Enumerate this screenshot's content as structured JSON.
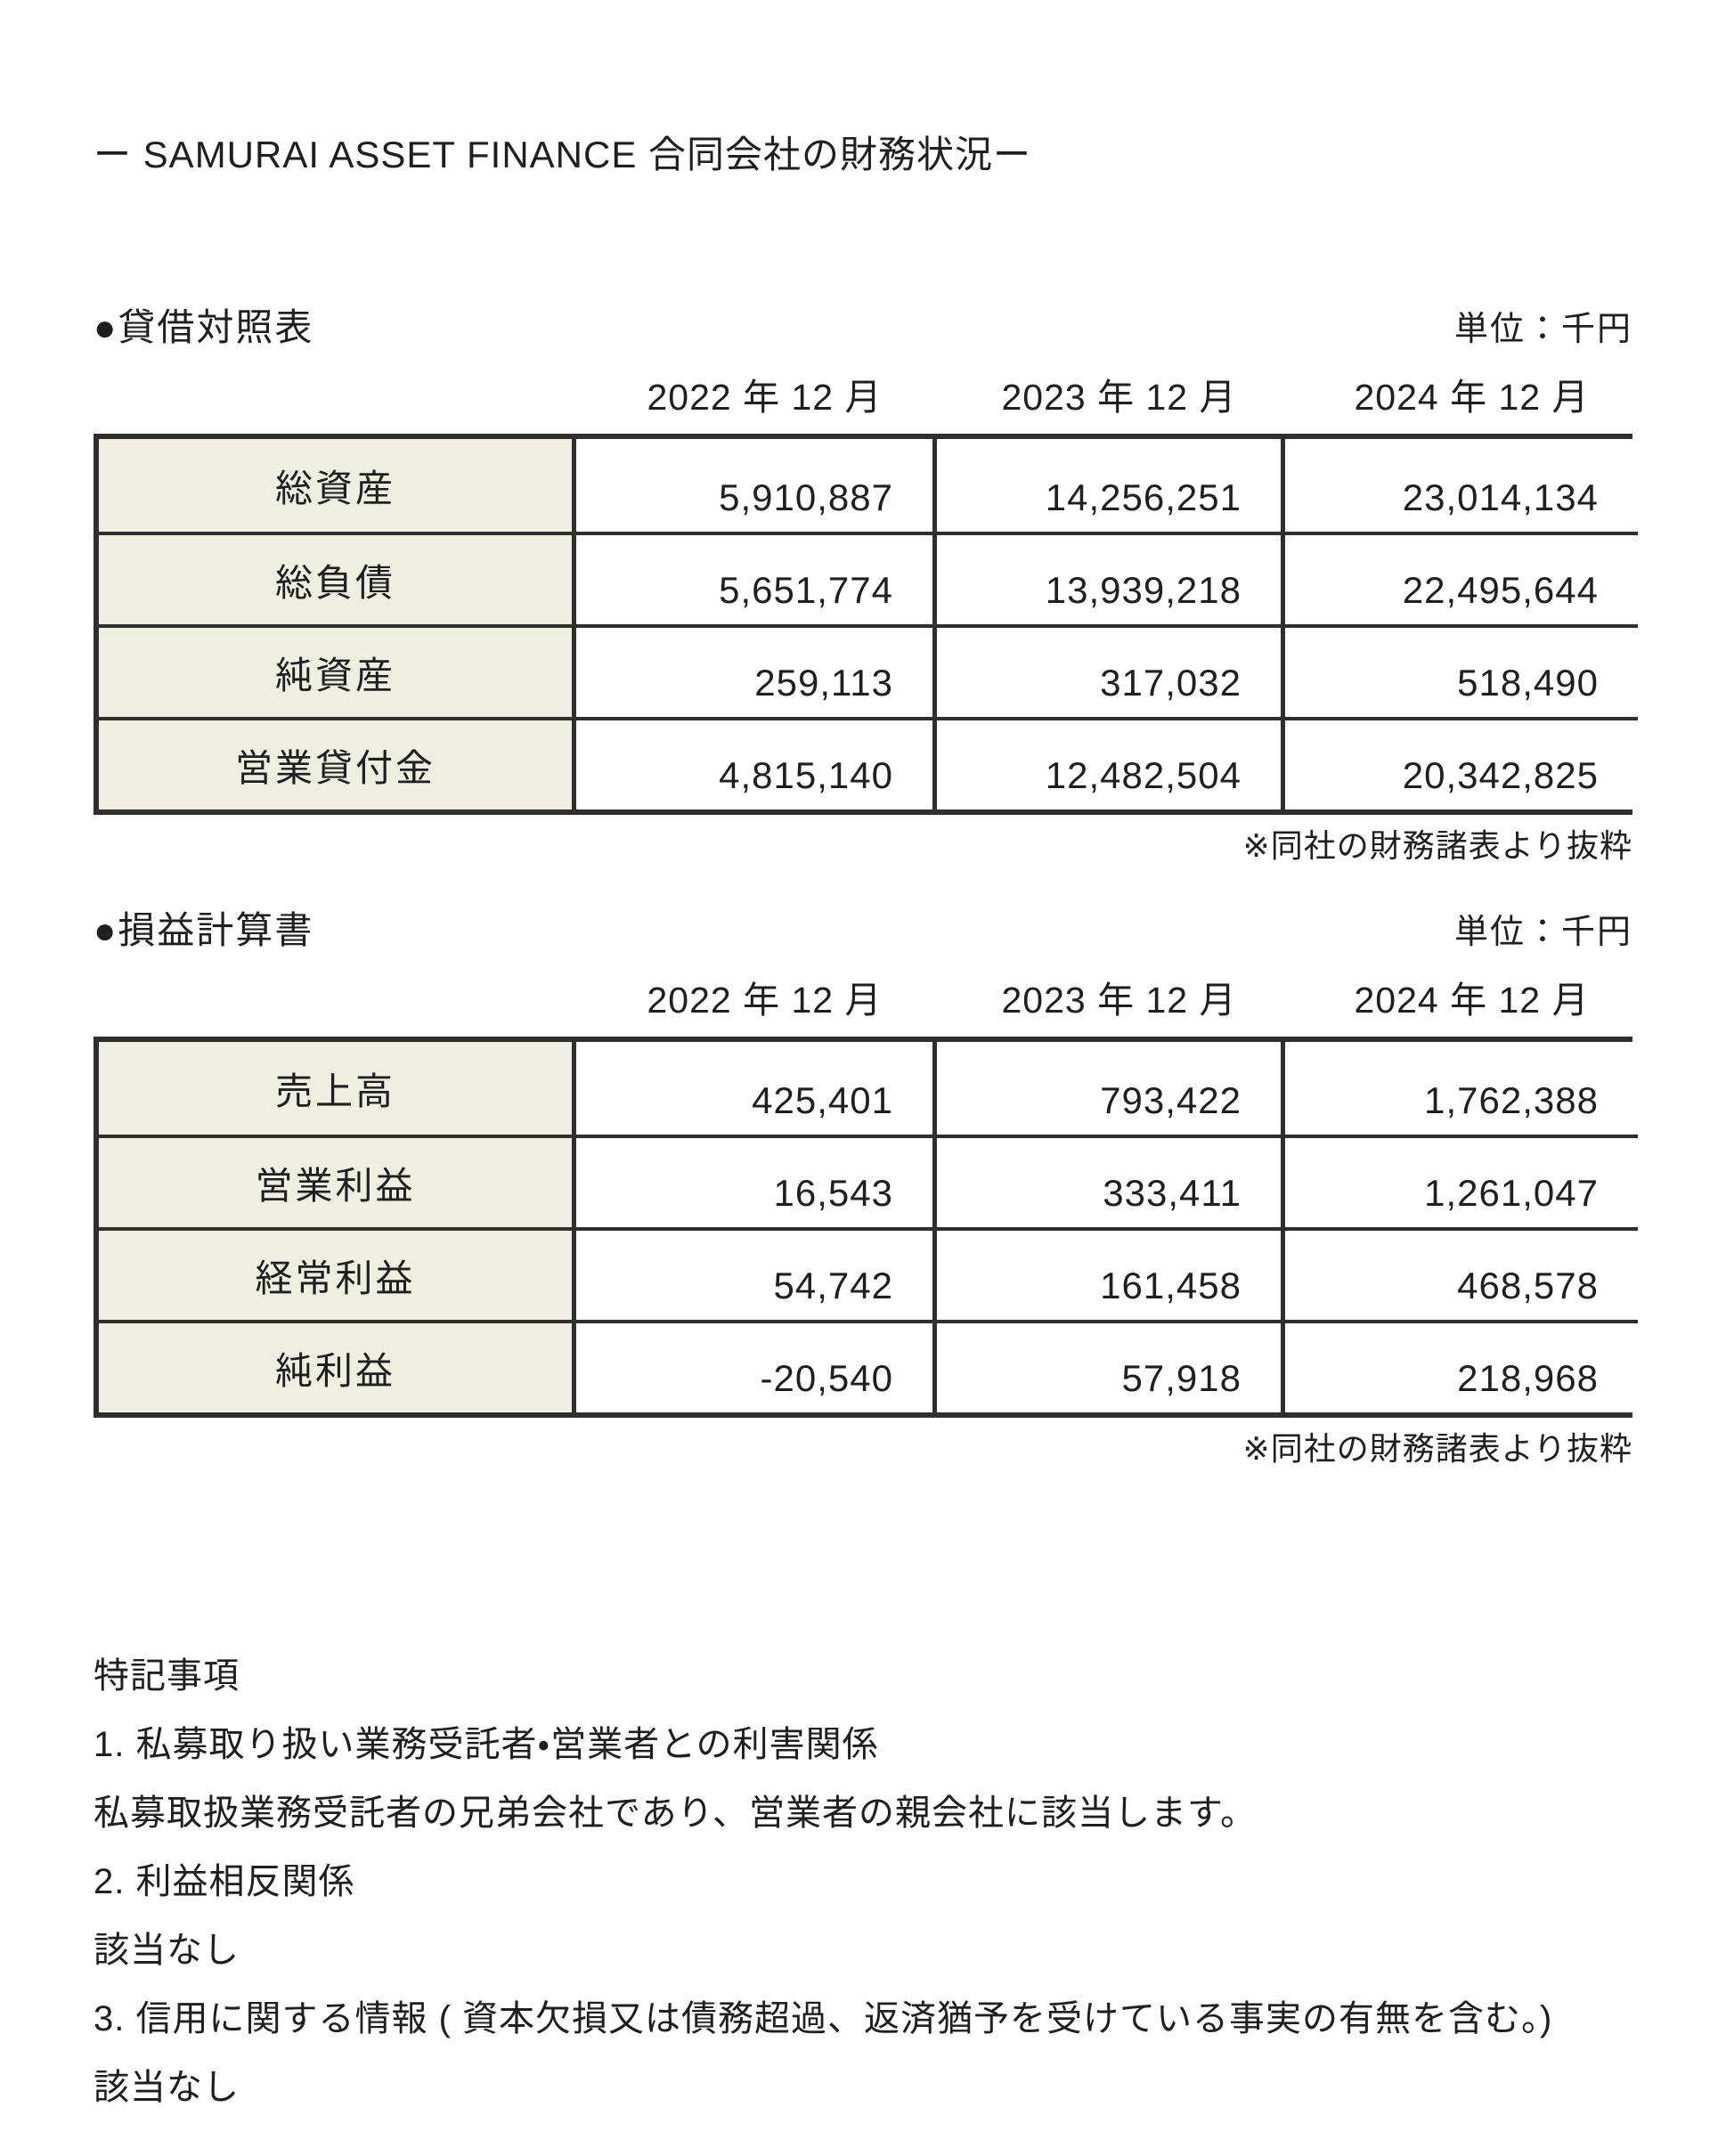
{
  "title": "ー SAMURAI ASSET FINANCE 合同会社の財務状況ー",
  "colors": {
    "label_cell_background": "#f0ede1",
    "table_border": "#2f2f2d",
    "text": "#1f1f1f"
  },
  "balance_sheet": {
    "section_label": "●貸借対照表",
    "unit_label": "単位：千円",
    "columns": [
      "2022 年 12 月",
      "2023 年 12 月",
      "2024 年 12 月"
    ],
    "rows": [
      {
        "label": "総資産",
        "values": [
          "5,910,887",
          "14,256,251",
          "23,014,134"
        ]
      },
      {
        "label": "総負債",
        "values": [
          "5,651,774",
          "13,939,218",
          "22,495,644"
        ]
      },
      {
        "label": "純資産",
        "values": [
          "259,113",
          "317,032",
          "518,490"
        ]
      },
      {
        "label": "営業貸付金",
        "values": [
          "4,815,140",
          "12,482,504",
          "20,342,825"
        ]
      }
    ],
    "source_note": "※同社の財務諸表より抜粋"
  },
  "income_statement": {
    "section_label": "●損益計算書",
    "unit_label": "単位：千円",
    "columns": [
      "2022 年 12 月",
      "2023 年 12 月",
      "2024 年 12 月"
    ],
    "rows": [
      {
        "label": "売上高",
        "values": [
          "425,401",
          "793,422",
          "1,762,388"
        ]
      },
      {
        "label": "営業利益",
        "values": [
          "16,543",
          "333,411",
          "1,261,047"
        ]
      },
      {
        "label": "経常利益",
        "values": [
          "54,742",
          "161,458",
          "468,578"
        ]
      },
      {
        "label": "純利益",
        "values": [
          "-20,540",
          "57,918",
          "218,968"
        ]
      }
    ],
    "source_note": "※同社の財務諸表より抜粋"
  },
  "notes": {
    "heading": "特記事項",
    "lines": [
      "1. 私募取り扱い業務受託者・営業者との利害関係",
      "私募取扱業務受託者の兄弟会社であり、営業者の親会社に該当します。",
      "2. 利益相反関係",
      "該当なし",
      "3. 信用に関する情報 ( 資本欠損又は債務超過、返済猶予を受けている事実の有無を含む。)",
      "該当なし"
    ]
  }
}
